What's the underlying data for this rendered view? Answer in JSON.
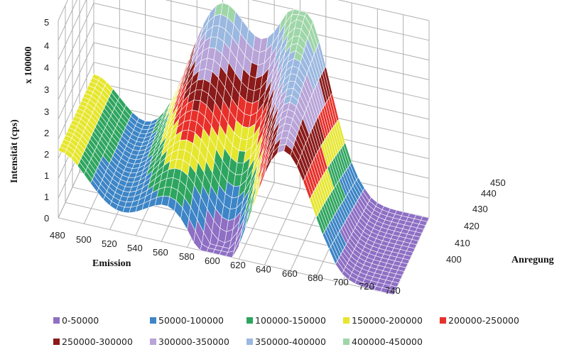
{
  "chart_data": {
    "type": "surface",
    "yaxis_title": "Intensität (cps)",
    "yaxis_multiplier": "x 100000",
    "xaxis_title": "Emission",
    "zaxis_title": "Anregung",
    "y_ticks": [
      "0",
      "1",
      "1",
      "2",
      "2",
      "3",
      "3",
      "4",
      "4",
      "5"
    ],
    "x_ticks": [
      "480",
      "500",
      "520",
      "540",
      "560",
      "580",
      "600",
      "620",
      "640",
      "660",
      "680",
      "700",
      "720",
      "740"
    ],
    "z_ticks": [
      "400",
      "410",
      "420",
      "430",
      "440",
      "450"
    ],
    "emission_range": [
      480,
      740
    ],
    "excitation_range": [
      400,
      450
    ],
    "intensity_range": [
      0,
      450000
    ],
    "grid": true,
    "legend_position": "bottom",
    "series": [
      {
        "name": "0-50000",
        "range": [
          0,
          50000
        ],
        "color": "#8e6fc4"
      },
      {
        "name": "50000-100000",
        "range": [
          50000,
          100000
        ],
        "color": "#3d85c6"
      },
      {
        "name": "100000-150000",
        "range": [
          100000,
          150000
        ],
        "color": "#2ea55f"
      },
      {
        "name": "150000-200000",
        "range": [
          150000,
          200000
        ],
        "color": "#e6e62e"
      },
      {
        "name": "200000-250000",
        "range": [
          200000,
          250000
        ],
        "color": "#e8302a"
      },
      {
        "name": "250000-300000",
        "range": [
          250000,
          300000
        ],
        "color": "#8b1a1a"
      },
      {
        "name": "300000-350000",
        "range": [
          300000,
          350000
        ],
        "color": "#b8a4d8"
      },
      {
        "name": "350000-400000",
        "range": [
          350000,
          400000
        ],
        "color": "#9bb8e0"
      },
      {
        "name": "400000-450000",
        "range": [
          400000,
          450000
        ],
        "color": "#9fd6a8"
      }
    ]
  }
}
